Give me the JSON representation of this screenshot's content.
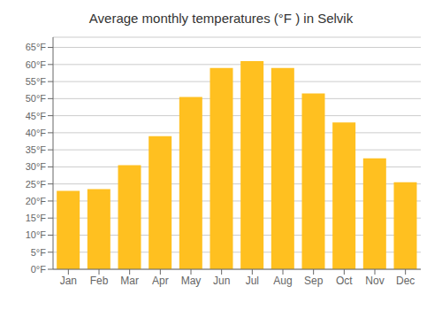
{
  "chart_data": {
    "type": "bar",
    "title": "Average monthly temperatures (°F ) in Selvik",
    "categories": [
      "Jan",
      "Feb",
      "Mar",
      "Apr",
      "May",
      "Jun",
      "Jul",
      "Aug",
      "Sep",
      "Oct",
      "Nov",
      "Dec"
    ],
    "values": [
      23,
      23.5,
      30.5,
      39,
      50.5,
      59,
      61,
      59,
      51.5,
      43,
      32.5,
      25.5
    ],
    "color": "#FFC020",
    "ylim": [
      0,
      68
    ],
    "yticks": [
      {
        "value": 0,
        "label": "0°F"
      },
      {
        "value": 5,
        "label": "5°F"
      },
      {
        "value": 10,
        "label": "10°F"
      },
      {
        "value": 15,
        "label": "15°F"
      },
      {
        "value": 20,
        "label": "20°F"
      },
      {
        "value": 25,
        "label": "25°F"
      },
      {
        "value": 30,
        "label": "30°F"
      },
      {
        "value": 35,
        "label": "35°F"
      },
      {
        "value": 40,
        "label": "40°F"
      },
      {
        "value": 45,
        "label": "45°F"
      },
      {
        "value": 50,
        "label": "50°F"
      },
      {
        "value": 55,
        "label": "55°F"
      },
      {
        "value": 60,
        "label": "60°F"
      },
      {
        "value": 65,
        "label": "65°F"
      }
    ],
    "grid": true
  }
}
